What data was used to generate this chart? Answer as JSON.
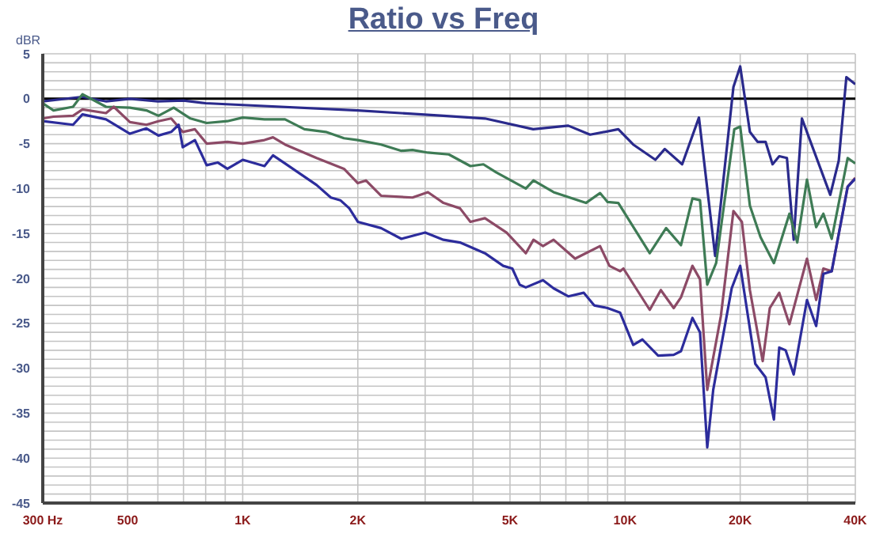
{
  "chart_data": {
    "type": "line",
    "title": "Ratio vs Freq",
    "ylabel": "dBR",
    "log": "x",
    "grid": true,
    "xlim": [
      300,
      40000
    ],
    "ylim": [
      -45,
      5
    ],
    "xticks": [
      {
        "value": 300,
        "label": "300 Hz"
      },
      {
        "value": 400,
        "label": null
      },
      {
        "value": 500,
        "label": "500"
      },
      {
        "value": 600,
        "label": null
      },
      {
        "value": 700,
        "label": null
      },
      {
        "value": 800,
        "label": null
      },
      {
        "value": 900,
        "label": null
      },
      {
        "value": 1000,
        "label": "1K"
      },
      {
        "value": 2000,
        "label": "2K"
      },
      {
        "value": 3000,
        "label": null
      },
      {
        "value": 4000,
        "label": null
      },
      {
        "value": 5000,
        "label": "5K"
      },
      {
        "value": 6000,
        "label": null
      },
      {
        "value": 7000,
        "label": null
      },
      {
        "value": 8000,
        "label": null
      },
      {
        "value": 9000,
        "label": null
      },
      {
        "value": 10000,
        "label": "10K"
      },
      {
        "value": 20000,
        "label": "20K"
      },
      {
        "value": 30000,
        "label": null
      },
      {
        "value": 40000,
        "label": "40K"
      }
    ],
    "yticks": [
      5,
      {
        "value": 4,
        "label": null
      },
      {
        "value": 3,
        "label": null
      },
      {
        "value": 2,
        "label": null
      },
      {
        "value": 1,
        "label": null
      },
      0,
      {
        "value": -1,
        "label": null
      },
      {
        "value": -2,
        "label": null
      },
      {
        "value": -3,
        "label": null
      },
      {
        "value": -4,
        "label": null
      },
      -5,
      {
        "value": -6,
        "label": null
      },
      {
        "value": -7,
        "label": null
      },
      {
        "value": -8,
        "label": null
      },
      {
        "value": -9,
        "label": null
      },
      -10,
      {
        "value": -11,
        "label": null
      },
      {
        "value": -12,
        "label": null
      },
      {
        "value": -13,
        "label": null
      },
      {
        "value": -14,
        "label": null
      },
      -15,
      {
        "value": -16,
        "label": null
      },
      {
        "value": -17,
        "label": null
      },
      {
        "value": -18,
        "label": null
      },
      {
        "value": -19,
        "label": null
      },
      -20,
      {
        "value": -21,
        "label": null
      },
      {
        "value": -22,
        "label": null
      },
      {
        "value": -23,
        "label": null
      },
      {
        "value": -24,
        "label": null
      },
      -25,
      {
        "value": -26,
        "label": null
      },
      {
        "value": -27,
        "label": null
      },
      {
        "value": -28,
        "label": null
      },
      {
        "value": -29,
        "label": null
      },
      -30,
      {
        "value": -31,
        "label": null
      },
      {
        "value": -32,
        "label": null
      },
      {
        "value": -33,
        "label": null
      },
      {
        "value": -34,
        "label": null
      },
      -35,
      {
        "value": -36,
        "label": null
      },
      {
        "value": -37,
        "label": null
      },
      {
        "value": -38,
        "label": null
      },
      {
        "value": -39,
        "label": null
      },
      -40,
      {
        "value": -41,
        "label": null
      },
      {
        "value": -42,
        "label": null
      },
      {
        "value": -43,
        "label": null
      },
      {
        "value": -44,
        "label": null
      },
      -45
    ],
    "ref_lines": [
      {
        "axis": "y",
        "value": 0,
        "color": "#000000"
      }
    ],
    "series": [
      {
        "color": "#2a2a8c",
        "x": [
          300,
          380,
          440,
          507,
          600,
          700,
          800,
          1000,
          2000,
          3350,
          4300,
          5750,
          7100,
          8100,
          9600,
          10500,
          12000,
          12700,
          14100,
          15600,
          17200,
          19200,
          20000,
          21200,
          22200,
          23300,
          24300,
          25300,
          26500,
          27600,
          29000,
          34400,
          36200,
          37900,
          40000
        ],
        "values": [
          -0.3,
          0.2,
          -0.3,
          0,
          -0.3,
          -0.2,
          -0.5,
          -0.7,
          -1.3,
          -1.9,
          -2.2,
          -3.4,
          -3.0,
          -4.0,
          -3.4,
          -5.1,
          -6.8,
          -5.6,
          -7.3,
          -2.1,
          -17.5,
          1.3,
          3.6,
          -3.7,
          -4.8,
          -4.8,
          -7.3,
          -6.4,
          -6.6,
          -15.7,
          -2.2,
          -10.7,
          -6.9,
          2.4,
          1.6
        ]
      },
      {
        "color": "#3e7b55",
        "x": [
          300,
          320,
          360,
          381,
          439,
          507,
          560,
          602,
          660,
          730,
          805,
          912,
          1000,
          1140,
          1290,
          1450,
          1650,
          1840,
          2000,
          2300,
          2600,
          2780,
          3050,
          3460,
          3940,
          4260,
          4600,
          5500,
          5760,
          6500,
          7900,
          8600,
          9000,
          9600,
          11600,
          12800,
          14000,
          15000,
          15700,
          16400,
          17300,
          19300,
          20000,
          21200,
          22600,
          24500,
          26900,
          28200,
          29900,
          31600,
          33000,
          34700,
          38200,
          40000
        ],
        "values": [
          -0.5,
          -1.3,
          -0.9,
          0.5,
          -0.9,
          -1.0,
          -1.3,
          -1.9,
          -1.0,
          -2.2,
          -2.7,
          -2.5,
          -2.1,
          -2.3,
          -2.3,
          -3.4,
          -3.7,
          -4.4,
          -4.6,
          -5.1,
          -5.8,
          -5.7,
          -6.0,
          -6.2,
          -7.5,
          -7.3,
          -8.2,
          -10.0,
          -9.1,
          -10.4,
          -11.6,
          -10.5,
          -11.5,
          -11.6,
          -17.2,
          -14.4,
          -16.3,
          -11.1,
          -11.3,
          -20.7,
          -18.3,
          -3.4,
          -3.1,
          -11.9,
          -15.4,
          -18.3,
          -12.8,
          -16.0,
          -9.0,
          -14.3,
          -12.8,
          -15.6,
          -6.6,
          -7.2
        ]
      },
      {
        "color": "#8c4a66",
        "x": [
          300,
          320,
          360,
          381,
          439,
          460,
          507,
          560,
          602,
          650,
          697,
          750,
          805,
          912,
          1000,
          1140,
          1200,
          1290,
          1560,
          1840,
          2000,
          2100,
          2300,
          2780,
          3050,
          3350,
          3700,
          3940,
          4300,
          4900,
          5500,
          5760,
          6100,
          6500,
          7400,
          8600,
          9100,
          9700,
          9900,
          11600,
          12400,
          13400,
          14000,
          15000,
          15700,
          16400,
          17800,
          19200,
          20200,
          21200,
          22900,
          23900,
          25300,
          26900,
          29900,
          31600,
          33000,
          34700,
          38200,
          40000
        ],
        "values": [
          -2.2,
          -2.0,
          -1.9,
          -1.2,
          -1.6,
          -0.9,
          -2.6,
          -2.9,
          -2.5,
          -2.2,
          -3.7,
          -3.4,
          -5.0,
          -4.8,
          -5.0,
          -4.6,
          -4.3,
          -5.1,
          -6.6,
          -7.8,
          -9.4,
          -9.1,
          -10.8,
          -11.0,
          -10.4,
          -11.6,
          -12.2,
          -13.7,
          -13.3,
          -14.9,
          -17.2,
          -15.7,
          -16.4,
          -15.7,
          -17.8,
          -16.4,
          -18.6,
          -19.2,
          -18.9,
          -23.5,
          -21.3,
          -23.3,
          -22.1,
          -18.6,
          -20.1,
          -32.4,
          -24.2,
          -12.5,
          -13.7,
          -21.3,
          -29.2,
          -23.3,
          -21.6,
          -25.1,
          -17.8,
          -22.4,
          -18.9,
          -19.2,
          -9.8,
          -8.8
        ]
      },
      {
        "color": "#2c2c9c",
        "x": [
          300,
          360,
          381,
          439,
          507,
          560,
          602,
          650,
          680,
          697,
          750,
          805,
          860,
          912,
          1000,
          1140,
          1200,
          1290,
          1560,
          1700,
          1800,
          1900,
          2000,
          2300,
          2600,
          3000,
          3350,
          3700,
          4300,
          4800,
          5070,
          5300,
          5500,
          6100,
          6500,
          7100,
          7800,
          8300,
          9000,
          9700,
          10500,
          11100,
          12200,
          13400,
          14000,
          15000,
          15700,
          16400,
          17000,
          19000,
          20000,
          21900,
          23300,
          24500,
          25300,
          26300,
          27600,
          29900,
          31600,
          33000,
          34700,
          38200,
          40000
        ],
        "values": [
          -2.5,
          -2.9,
          -1.75,
          -2.3,
          -3.9,
          -3.3,
          -4.1,
          -3.7,
          -2.9,
          -5.4,
          -4.6,
          -7.4,
          -7.1,
          -7.8,
          -6.8,
          -7.5,
          -6.3,
          -7.2,
          -9.6,
          -11.0,
          -11.3,
          -12.2,
          -13.7,
          -14.4,
          -15.6,
          -14.9,
          -15.7,
          -16.0,
          -17.2,
          -18.6,
          -18.9,
          -20.7,
          -21.0,
          -20.2,
          -21.1,
          -22.0,
          -21.6,
          -23.0,
          -23.3,
          -23.8,
          -27.4,
          -26.8,
          -28.6,
          -28.5,
          -28.1,
          -24.4,
          -26.0,
          -38.8,
          -32.4,
          -21.1,
          -18.6,
          -29.5,
          -31.0,
          -35.7,
          -27.7,
          -28.0,
          -30.7,
          -22.4,
          -25.3,
          -19.5,
          -19.2,
          -9.8,
          -8.9
        ]
      }
    ]
  }
}
